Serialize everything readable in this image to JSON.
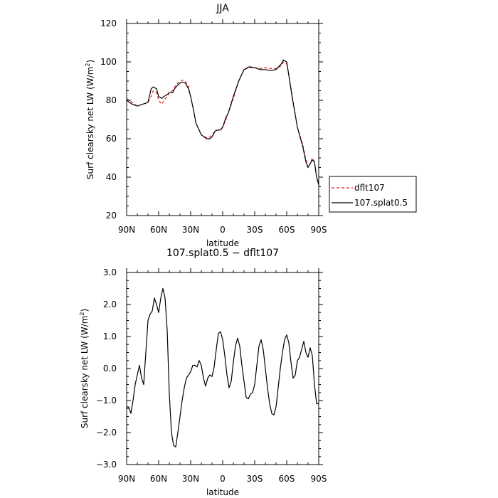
{
  "chart_data": [
    {
      "type": "line",
      "title": "JJA",
      "xlabel": "latitude",
      "ylabel_main": "Surf clearsky net LW (W/m",
      "ylabel_sup": "2",
      "ylabel_tail": ")",
      "xlim": [
        90,
        -90
      ],
      "ylim": [
        20,
        120
      ],
      "xticks": [
        {
          "value": 90,
          "label": "90N"
        },
        {
          "value": 60,
          "label": "60N"
        },
        {
          "value": 30,
          "label": "30N"
        },
        {
          "value": 0,
          "label": "0"
        },
        {
          "value": -30,
          "label": "30S"
        },
        {
          "value": -60,
          "label": "60S"
        },
        {
          "value": -90,
          "label": "90S"
        }
      ],
      "yticks": [
        {
          "value": 20,
          "label": "20"
        },
        {
          "value": 40,
          "label": "40"
        },
        {
          "value": 60,
          "label": "60"
        },
        {
          "value": 80,
          "label": "80"
        },
        {
          "value": 100,
          "label": "100"
        },
        {
          "value": 120,
          "label": "120"
        }
      ],
      "legend": {
        "placement": "right-outside",
        "entries": [
          "dflt107",
          "107.splat0.5"
        ]
      },
      "series": [
        {
          "name": "dflt107",
          "color": "#e8201c",
          "style": "dashed",
          "x": [
            90,
            85,
            80,
            75,
            72,
            70,
            67,
            65,
            62,
            60,
            57,
            55,
            52,
            50,
            47,
            45,
            42,
            40,
            38,
            35,
            32,
            30,
            27,
            25,
            20,
            15,
            12,
            10,
            7,
            5,
            2,
            0,
            -3,
            -5,
            -10,
            -15,
            -20,
            -25,
            -30,
            -35,
            -40,
            -45,
            -50,
            -55,
            -57,
            -60,
            -62,
            -65,
            -70,
            -75,
            -78,
            -80,
            -82,
            -84,
            -86,
            -88,
            -90
          ],
          "y": [
            81,
            79,
            77,
            78,
            78.5,
            79,
            82,
            85,
            84,
            80,
            78,
            80,
            82,
            84,
            85,
            87,
            89,
            90,
            90.5,
            90,
            87,
            82,
            74,
            68,
            62,
            60.5,
            61,
            62,
            64,
            64.5,
            65,
            66,
            70,
            73,
            81,
            90,
            96,
            97,
            97,
            96.5,
            97,
            96.5,
            96.5,
            98,
            100,
            99,
            93,
            83,
            66,
            57,
            49,
            45,
            47,
            50,
            48,
            40,
            37
          ]
        },
        {
          "name": "107.splat0.5",
          "color": "#000000",
          "style": "solid",
          "x": [
            90,
            85,
            80,
            75,
            72,
            70,
            67,
            65,
            62,
            60,
            57,
            55,
            52,
            50,
            47,
            45,
            42,
            40,
            38,
            35,
            32,
            30,
            27,
            25,
            20,
            15,
            12,
            10,
            7,
            5,
            2,
            0,
            -3,
            -5,
            -10,
            -15,
            -20,
            -25,
            -30,
            -35,
            -40,
            -45,
            -50,
            -55,
            -57,
            -60,
            -62,
            -65,
            -70,
            -75,
            -78,
            -80,
            -82,
            -84,
            -86,
            -88,
            -90
          ],
          "y": [
            80,
            78,
            77,
            78,
            78.5,
            79,
            86,
            87,
            86,
            82,
            81,
            82,
            83,
            84,
            84,
            86,
            88,
            89,
            89.5,
            89,
            86,
            82,
            74,
            68,
            62,
            60,
            60,
            61,
            64,
            64.5,
            64.5,
            66,
            71,
            73,
            82,
            90,
            96,
            97.5,
            97,
            96,
            96,
            95.5,
            96,
            99,
            101,
            100,
            93,
            82,
            66,
            56,
            48,
            45,
            47,
            49,
            48,
            40,
            36
          ]
        }
      ]
    },
    {
      "type": "line",
      "title": "107.splat0.5 − dflt107",
      "xlabel": "latitude",
      "ylabel_main": "Surf clearsky net LW (W/m",
      "ylabel_sup": "2",
      "ylabel_tail": ")",
      "xlim": [
        90,
        -90
      ],
      "ylim": [
        -3,
        3
      ],
      "xticks": [
        {
          "value": 90,
          "label": "90N"
        },
        {
          "value": 60,
          "label": "60N"
        },
        {
          "value": 30,
          "label": "30N"
        },
        {
          "value": 0,
          "label": "0"
        },
        {
          "value": -30,
          "label": "30S"
        },
        {
          "value": -60,
          "label": "60S"
        },
        {
          "value": -90,
          "label": "90S"
        }
      ],
      "yticks": [
        {
          "value": -3,
          "label": "−3.0"
        },
        {
          "value": -2,
          "label": "−2.0"
        },
        {
          "value": -1,
          "label": "−1.0"
        },
        {
          "value": 0,
          "label": "0.0"
        },
        {
          "value": 1,
          "label": "1.0"
        },
        {
          "value": 2,
          "label": "2.0"
        },
        {
          "value": 3,
          "label": "3.0"
        }
      ],
      "series": [
        {
          "color": "#000000",
          "style": "solid",
          "x": [
            90,
            88,
            86,
            84,
            82,
            80,
            78,
            76,
            74,
            72,
            70,
            68,
            66,
            64,
            62,
            60,
            58,
            56,
            54,
            52,
            50,
            48,
            46,
            44,
            42,
            40,
            38,
            36,
            34,
            32,
            30,
            28,
            26,
            24,
            22,
            20,
            18,
            16,
            14,
            12,
            10,
            8,
            6,
            4,
            2,
            0,
            -2,
            -4,
            -6,
            -8,
            -10,
            -12,
            -14,
            -16,
            -18,
            -20,
            -22,
            -24,
            -26,
            -28,
            -30,
            -32,
            -34,
            -36,
            -38,
            -40,
            -42,
            -44,
            -46,
            -48,
            -50,
            -52,
            -54,
            -56,
            -58,
            -60,
            -62,
            -64,
            -66,
            -68,
            -70,
            -72,
            -74,
            -76,
            -78,
            -80,
            -82,
            -84,
            -86,
            -88,
            -90
          ],
          "y": [
            -1.2,
            -1.2,
            -1.4,
            -1.0,
            -0.5,
            -0.2,
            0.1,
            -0.3,
            -0.5,
            0.5,
            1.5,
            1.7,
            1.8,
            2.2,
            2.0,
            1.75,
            2.2,
            2.5,
            2.2,
            1.2,
            -0.8,
            -2.0,
            -2.4,
            -2.45,
            -2.0,
            -1.5,
            -1.0,
            -0.6,
            -0.3,
            -0.2,
            -0.1,
            0.1,
            0.1,
            0.05,
            0.25,
            0.1,
            -0.3,
            -0.55,
            -0.3,
            -0.2,
            -0.25,
            0.05,
            0.6,
            1.1,
            1.15,
            0.9,
            0.4,
            -0.2,
            -0.6,
            -0.4,
            0.2,
            0.7,
            0.95,
            0.7,
            0.1,
            -0.4,
            -0.9,
            -0.95,
            -0.8,
            -0.75,
            -0.5,
            0.1,
            0.7,
            0.9,
            0.6,
            0.0,
            -0.6,
            -1.1,
            -1.4,
            -1.45,
            -1.2,
            -0.6,
            0.0,
            0.5,
            0.9,
            1.05,
            0.8,
            0.2,
            -0.3,
            -0.2,
            0.25,
            0.35,
            0.6,
            0.85,
            0.5,
            0.35,
            0.65,
            0.4,
            -0.5,
            -1.1,
            -1.1
          ]
        }
      ]
    }
  ]
}
